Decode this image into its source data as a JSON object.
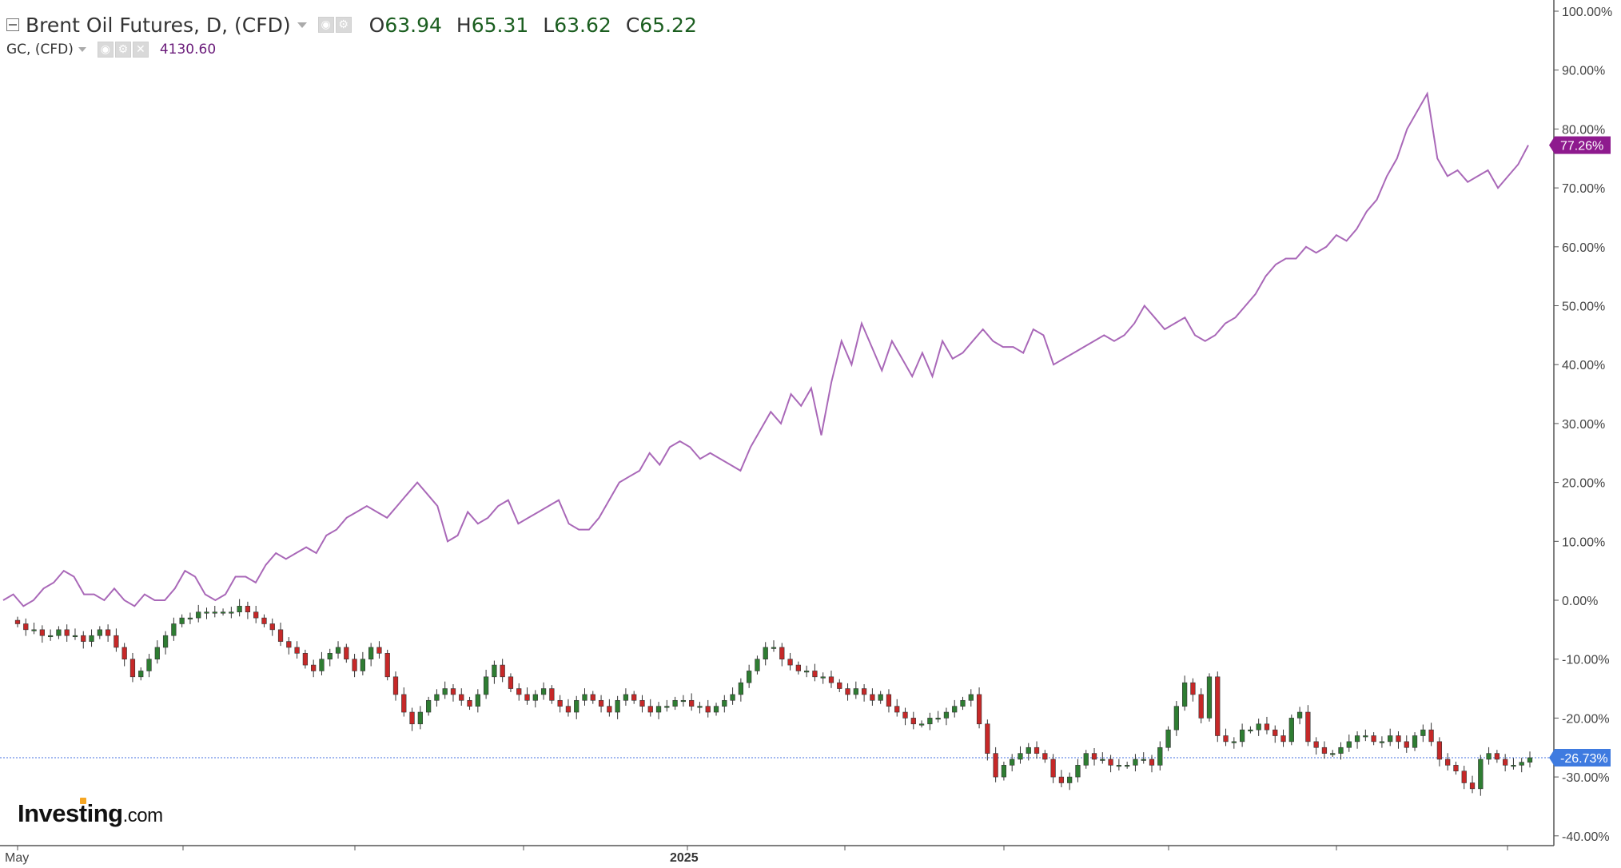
{
  "legend": {
    "main_title": "Brent Oil Futures, D, (CFD)",
    "open": "63.94",
    "high": "65.31",
    "low": "63.62",
    "close": "65.22",
    "compare_symbol": "GC, (CFD)",
    "compare_value": "4130.60"
  },
  "icons": [
    "collapse-icon",
    "caret-down-icon",
    "eye-icon",
    "gear-icon",
    "close-icon"
  ],
  "logo": {
    "brand": "Investing",
    "suffix": ".com"
  },
  "chart_data": {
    "type": "line",
    "y_axis": {
      "label_format": "percent",
      "ticks": [
        "100.00%",
        "90.00%",
        "80.00%",
        "70.00%",
        "60.00%",
        "50.00%",
        "40.00%",
        "30.00%",
        "20.00%",
        "10.00%",
        "0.00%",
        "-10.00%",
        "-20.00%",
        "-30.00%",
        "-40.00%"
      ],
      "ylim": [
        -40,
        100
      ]
    },
    "x_axis": {
      "labels": [
        "May",
        "2025"
      ]
    },
    "series": [
      {
        "name": "GC, (CFD)",
        "style": "line",
        "color": "#a968b8",
        "current_label": "77.26%",
        "last": 77.26,
        "values": [
          0,
          1,
          -1,
          0,
          2,
          3,
          5,
          4,
          1,
          1,
          0,
          2,
          0,
          -1,
          1,
          0,
          0,
          2,
          5,
          4,
          1,
          0,
          1,
          4,
          4,
          3,
          6,
          8,
          7,
          8,
          9,
          8,
          11,
          12,
          14,
          15,
          16,
          15,
          14,
          16,
          18,
          20,
          18,
          16,
          10,
          11,
          15,
          13,
          14,
          16,
          17,
          13,
          14,
          15,
          16,
          17,
          13,
          12,
          12,
          14,
          17,
          20,
          21,
          22,
          25,
          23,
          26,
          27,
          26,
          24,
          25,
          24,
          23,
          22,
          26,
          29,
          32,
          30,
          35,
          33,
          36,
          28,
          37,
          44,
          40,
          47,
          43,
          39,
          44,
          41,
          38,
          42,
          38,
          44,
          41,
          42,
          44,
          46,
          44,
          43,
          43,
          42,
          46,
          45,
          40,
          41,
          42,
          43,
          44,
          45,
          44,
          45,
          47,
          50,
          48,
          46,
          47,
          48,
          45,
          44,
          45,
          47,
          48,
          50,
          52,
          55,
          57,
          58,
          58,
          60,
          59,
          60,
          62,
          61,
          63,
          66,
          68,
          72,
          75,
          80,
          83,
          86,
          75,
          72,
          73,
          71,
          72,
          73,
          70,
          72,
          74,
          77.26
        ]
      },
      {
        "name": "Brent Oil Futures, D, (CFD)",
        "style": "candlestick",
        "up_color": "#2e7d32",
        "down_color": "#c62828",
        "current_label": "-26.73%",
        "last": -26.73,
        "values": [
          -4,
          -5,
          -5,
          -6,
          -6,
          -5,
          -6,
          -6,
          -7,
          -6,
          -5,
          -6,
          -8,
          -10,
          -13,
          -12,
          -10,
          -8,
          -6,
          -4,
          -3,
          -3,
          -2,
          -2,
          -2,
          -2,
          -2,
          -1,
          -2,
          -3,
          -4,
          -5,
          -7,
          -8,
          -9,
          -11,
          -12,
          -10,
          -9,
          -8,
          -10,
          -12,
          -10,
          -8,
          -9,
          -13,
          -16,
          -19,
          -21,
          -19,
          -17,
          -16,
          -15,
          -16,
          -17,
          -18,
          -16,
          -13,
          -11,
          -13,
          -15,
          -16,
          -17,
          -16,
          -15,
          -17,
          -18,
          -19,
          -17,
          -16,
          -17,
          -18,
          -19,
          -17,
          -16,
          -17,
          -18,
          -19,
          -18,
          -18,
          -17,
          -17,
          -18,
          -18,
          -19,
          -18,
          -17,
          -16,
          -14,
          -12,
          -10,
          -8,
          -8,
          -10,
          -11,
          -12,
          -12,
          -13,
          -13,
          -14,
          -15,
          -16,
          -15,
          -16,
          -17,
          -16,
          -18,
          -19,
          -20,
          -21,
          -21,
          -20,
          -20,
          -19,
          -18,
          -17,
          -16,
          -21,
          -26,
          -30,
          -28,
          -27,
          -26,
          -25,
          -26,
          -27,
          -30,
          -31,
          -30,
          -28,
          -26,
          -27,
          -27,
          -28,
          -28,
          -28,
          -27,
          -27,
          -28,
          -25,
          -22,
          -18,
          -14,
          -16,
          -20,
          -13,
          -23,
          -24,
          -24,
          -22,
          -22,
          -21,
          -22,
          -23,
          -24,
          -20,
          -19,
          -24,
          -25,
          -26,
          -26,
          -25,
          -24,
          -23,
          -23,
          -24,
          -24,
          -23,
          -24,
          -25,
          -23,
          -22,
          -24,
          -27,
          -28,
          -29,
          -31,
          -32,
          -27,
          -26,
          -27,
          -28,
          -28,
          -27.5,
          -26.73
        ]
      }
    ],
    "reference_line": {
      "value": -26.73,
      "style": "dotted",
      "color": "#4472e0"
    }
  }
}
